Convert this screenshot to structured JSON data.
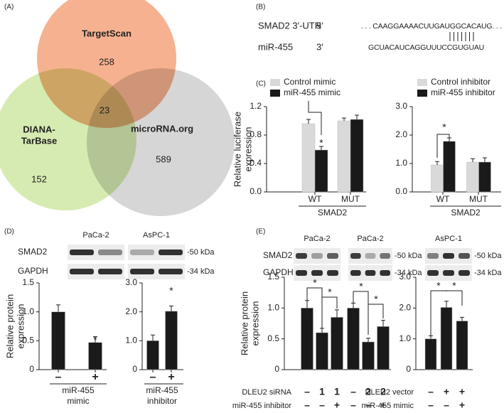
{
  "panels": {
    "a": "(A)",
    "b": "(B)",
    "c": "(C)",
    "d": "(D)",
    "e": "(E)"
  },
  "venn": {
    "sets": [
      {
        "name_lines": [
          "TargetScan"
        ],
        "count": 258,
        "color": "#f4a47c"
      },
      {
        "name_lines": [
          "DIANA-",
          "TarBase"
        ],
        "count": 152,
        "color": "#cfe7a3"
      },
      {
        "name_lines": [
          "microRNA.org"
        ],
        "count": 589,
        "color": "#cfcfcf"
      }
    ],
    "shared": 23
  },
  "sequence": {
    "rows": [
      {
        "label": "SMAD2 3′-UTR",
        "end": "5′",
        "seq": ". . . CAAGGAAAACUUGAUGGCACAUG. . ."
      },
      {
        "label": "miR-455",
        "end": "3′",
        "seq": "GCUACAUCAGGUUUCCGUGUAU"
      }
    ]
  },
  "blots": {
    "d": {
      "cells": [
        "PaCa-2",
        "AsPC-1"
      ],
      "proteins": [
        "SMAD2",
        "GAPDH"
      ],
      "sizes": [
        "-50 kDa",
        "-34 kDa"
      ]
    },
    "e": {
      "cells": [
        "PaCa-2",
        "PaCa-2",
        "AsPC-1"
      ],
      "proteins": [
        "SMAD2",
        "GAPDH"
      ],
      "sizes": [
        "-50 kDa",
        "-34 kDa"
      ]
    }
  },
  "chart_data": [
    {
      "type": "bar",
      "ylabel": [
        "Relative luciferase",
        "expression"
      ],
      "categories": [
        "WT",
        "MUT"
      ],
      "group_label": "SMAD2",
      "series": [
        {
          "name": "Control mimic",
          "color": "#d9d9d9",
          "values": [
            0.96,
            1.0
          ],
          "errors": [
            0.06,
            0.04
          ]
        },
        {
          "name": "miR-455 mimic",
          "color": "#1a1a1a",
          "values": [
            0.59,
            1.02
          ],
          "errors": [
            0.05,
            0.06
          ]
        }
      ],
      "ylim": [
        0,
        1.2
      ],
      "yticks": [
        {
          "value": 0,
          "label": "0.0"
        },
        0.4,
        0.8,
        1.2
      ],
      "annotations": [
        "*"
      ]
    },
    {
      "type": "bar",
      "categories": [
        "WT",
        "MUT"
      ],
      "group_label": "SMAD2",
      "series": [
        {
          "name": "Control inhibitor",
          "color": "#d9d9d9",
          "values": [
            0.95,
            1.05
          ],
          "errors": [
            0.12,
            0.12
          ]
        },
        {
          "name": "miR-455 inhibitor",
          "color": "#1a1a1a",
          "values": [
            1.78,
            1.05
          ],
          "errors": [
            0.12,
            0.15
          ]
        }
      ],
      "ylim": [
        0,
        3
      ],
      "yticks": [
        {
          "value": 0,
          "label": "0.0"
        },
        {
          "value": 1,
          "label": "1.0"
        },
        {
          "value": 2,
          "label": "2.0"
        },
        {
          "value": 3,
          "label": "3.0"
        }
      ],
      "annotations": [
        "*"
      ]
    },
    {
      "type": "bar",
      "ylabel": [
        "Relative protein",
        "expression"
      ],
      "categories": [
        "–",
        "+"
      ],
      "xlabel": [
        "miR-455",
        "mimic"
      ],
      "color": "#1a1a1a",
      "values": [
        1.0,
        0.47
      ],
      "errors": [
        0.12,
        0.1
      ],
      "ylim": [
        0,
        1.5
      ],
      "yticks": [
        0,
        0.5,
        {
          "value": 1,
          "label": "1.0"
        },
        1.5
      ],
      "annotations": [
        "*"
      ]
    },
    {
      "type": "bar",
      "categories": [
        "–",
        "+"
      ],
      "xlabel": [
        "miR-455",
        "inhibitor"
      ],
      "color": "#1a1a1a",
      "values": [
        1.0,
        2.02
      ],
      "errors": [
        0.2,
        0.18
      ],
      "ylim": [
        0,
        3
      ],
      "yticks": [
        0,
        {
          "value": 1,
          "label": "1.0"
        },
        {
          "value": 2,
          "label": "2.0"
        },
        {
          "value": 3,
          "label": "3.0"
        }
      ],
      "annotations": [
        "*"
      ]
    },
    {
      "type": "bar",
      "ylabel": [
        "Relative protein",
        "expression"
      ],
      "color": "#1a1a1a",
      "values": [
        1.0,
        0.6,
        0.85,
        1.0,
        0.45,
        0.7
      ],
      "errors": [
        0.12,
        0.07,
        0.12,
        0.08,
        0.06,
        0.1
      ],
      "conditions": [
        {
          "name": "DLEU2 siRNA",
          "labels": [
            "–",
            "1",
            "1",
            "–",
            "2",
            "2"
          ]
        },
        {
          "name": "miR-455 inhibitor",
          "labels": [
            "–",
            "–",
            "+",
            "–",
            "–",
            "+"
          ]
        }
      ],
      "ylim": [
        0,
        1.5
      ],
      "yticks": [
        0,
        0.5,
        {
          "value": 1,
          "label": "1.0"
        },
        1.5
      ],
      "annotations": [
        "*",
        "*",
        "*",
        "*"
      ]
    },
    {
      "type": "bar",
      "color": "#1a1a1a",
      "values": [
        1.0,
        2.02,
        1.58
      ],
      "errors": [
        0.1,
        0.2,
        0.12
      ],
      "conditions": [
        {
          "name": "DLEU2 vector",
          "labels": [
            "–",
            "+",
            "+"
          ]
        },
        {
          "name": "miR-455 mimic",
          "labels": [
            "–",
            "–",
            "+"
          ]
        }
      ],
      "ylim": [
        0,
        3
      ],
      "yticks": [
        0,
        {
          "value": 1,
          "label": "1.0"
        },
        {
          "value": 2,
          "label": "2.0"
        },
        {
          "value": 3,
          "label": "3.0"
        }
      ],
      "annotations": [
        "*",
        "*"
      ]
    }
  ]
}
